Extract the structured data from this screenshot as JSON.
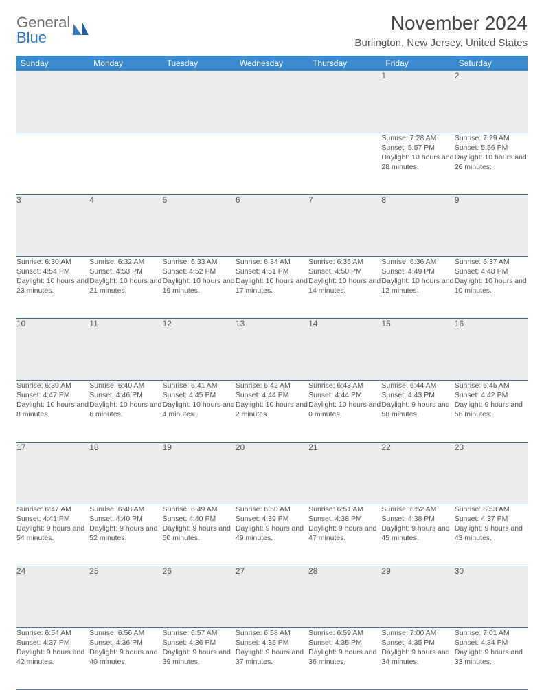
{
  "logo": {
    "text1": "General",
    "text2": "Blue"
  },
  "title": "November 2024",
  "location": "Burlington, New Jersey, United States",
  "colors": {
    "header_bg": "#3b8bd0",
    "header_text": "#ffffff",
    "daynum_bg": "#ededed",
    "cell_border": "#4a6fa5",
    "body_text": "#555555",
    "logo_gray": "#6d6d6d",
    "logo_blue": "#2f78c4"
  },
  "weekdays": [
    "Sunday",
    "Monday",
    "Tuesday",
    "Wednesday",
    "Thursday",
    "Friday",
    "Saturday"
  ],
  "weeks": [
    {
      "nums": [
        "",
        "",
        "",
        "",
        "",
        "1",
        "2"
      ],
      "cells": [
        null,
        null,
        null,
        null,
        null,
        {
          "sunrise": "7:28 AM",
          "sunset": "5:57 PM",
          "daylight": "10 hours and 28 minutes."
        },
        {
          "sunrise": "7:29 AM",
          "sunset": "5:56 PM",
          "daylight": "10 hours and 26 minutes."
        }
      ]
    },
    {
      "nums": [
        "3",
        "4",
        "5",
        "6",
        "7",
        "8",
        "9"
      ],
      "cells": [
        {
          "sunrise": "6:30 AM",
          "sunset": "4:54 PM",
          "daylight": "10 hours and 23 minutes."
        },
        {
          "sunrise": "6:32 AM",
          "sunset": "4:53 PM",
          "daylight": "10 hours and 21 minutes."
        },
        {
          "sunrise": "6:33 AM",
          "sunset": "4:52 PM",
          "daylight": "10 hours and 19 minutes."
        },
        {
          "sunrise": "6:34 AM",
          "sunset": "4:51 PM",
          "daylight": "10 hours and 17 minutes."
        },
        {
          "sunrise": "6:35 AM",
          "sunset": "4:50 PM",
          "daylight": "10 hours and 14 minutes."
        },
        {
          "sunrise": "6:36 AM",
          "sunset": "4:49 PM",
          "daylight": "10 hours and 12 minutes."
        },
        {
          "sunrise": "6:37 AM",
          "sunset": "4:48 PM",
          "daylight": "10 hours and 10 minutes."
        }
      ]
    },
    {
      "nums": [
        "10",
        "11",
        "12",
        "13",
        "14",
        "15",
        "16"
      ],
      "cells": [
        {
          "sunrise": "6:39 AM",
          "sunset": "4:47 PM",
          "daylight": "10 hours and 8 minutes."
        },
        {
          "sunrise": "6:40 AM",
          "sunset": "4:46 PM",
          "daylight": "10 hours and 6 minutes."
        },
        {
          "sunrise": "6:41 AM",
          "sunset": "4:45 PM",
          "daylight": "10 hours and 4 minutes."
        },
        {
          "sunrise": "6:42 AM",
          "sunset": "4:44 PM",
          "daylight": "10 hours and 2 minutes."
        },
        {
          "sunrise": "6:43 AM",
          "sunset": "4:44 PM",
          "daylight": "10 hours and 0 minutes."
        },
        {
          "sunrise": "6:44 AM",
          "sunset": "4:43 PM",
          "daylight": "9 hours and 58 minutes."
        },
        {
          "sunrise": "6:45 AM",
          "sunset": "4:42 PM",
          "daylight": "9 hours and 56 minutes."
        }
      ]
    },
    {
      "nums": [
        "17",
        "18",
        "19",
        "20",
        "21",
        "22",
        "23"
      ],
      "cells": [
        {
          "sunrise": "6:47 AM",
          "sunset": "4:41 PM",
          "daylight": "9 hours and 54 minutes."
        },
        {
          "sunrise": "6:48 AM",
          "sunset": "4:40 PM",
          "daylight": "9 hours and 52 minutes."
        },
        {
          "sunrise": "6:49 AM",
          "sunset": "4:40 PM",
          "daylight": "9 hours and 50 minutes."
        },
        {
          "sunrise": "6:50 AM",
          "sunset": "4:39 PM",
          "daylight": "9 hours and 49 minutes."
        },
        {
          "sunrise": "6:51 AM",
          "sunset": "4:38 PM",
          "daylight": "9 hours and 47 minutes."
        },
        {
          "sunrise": "6:52 AM",
          "sunset": "4:38 PM",
          "daylight": "9 hours and 45 minutes."
        },
        {
          "sunrise": "6:53 AM",
          "sunset": "4:37 PM",
          "daylight": "9 hours and 43 minutes."
        }
      ]
    },
    {
      "nums": [
        "24",
        "25",
        "26",
        "27",
        "28",
        "29",
        "30"
      ],
      "cells": [
        {
          "sunrise": "6:54 AM",
          "sunset": "4:37 PM",
          "daylight": "9 hours and 42 minutes."
        },
        {
          "sunrise": "6:56 AM",
          "sunset": "4:36 PM",
          "daylight": "9 hours and 40 minutes."
        },
        {
          "sunrise": "6:57 AM",
          "sunset": "4:36 PM",
          "daylight": "9 hours and 39 minutes."
        },
        {
          "sunrise": "6:58 AM",
          "sunset": "4:35 PM",
          "daylight": "9 hours and 37 minutes."
        },
        {
          "sunrise": "6:59 AM",
          "sunset": "4:35 PM",
          "daylight": "9 hours and 36 minutes."
        },
        {
          "sunrise": "7:00 AM",
          "sunset": "4:35 PM",
          "daylight": "9 hours and 34 minutes."
        },
        {
          "sunrise": "7:01 AM",
          "sunset": "4:34 PM",
          "daylight": "9 hours and 33 minutes."
        }
      ]
    }
  ],
  "labels": {
    "sunrise": "Sunrise:",
    "sunset": "Sunset:",
    "daylight": "Daylight:"
  }
}
